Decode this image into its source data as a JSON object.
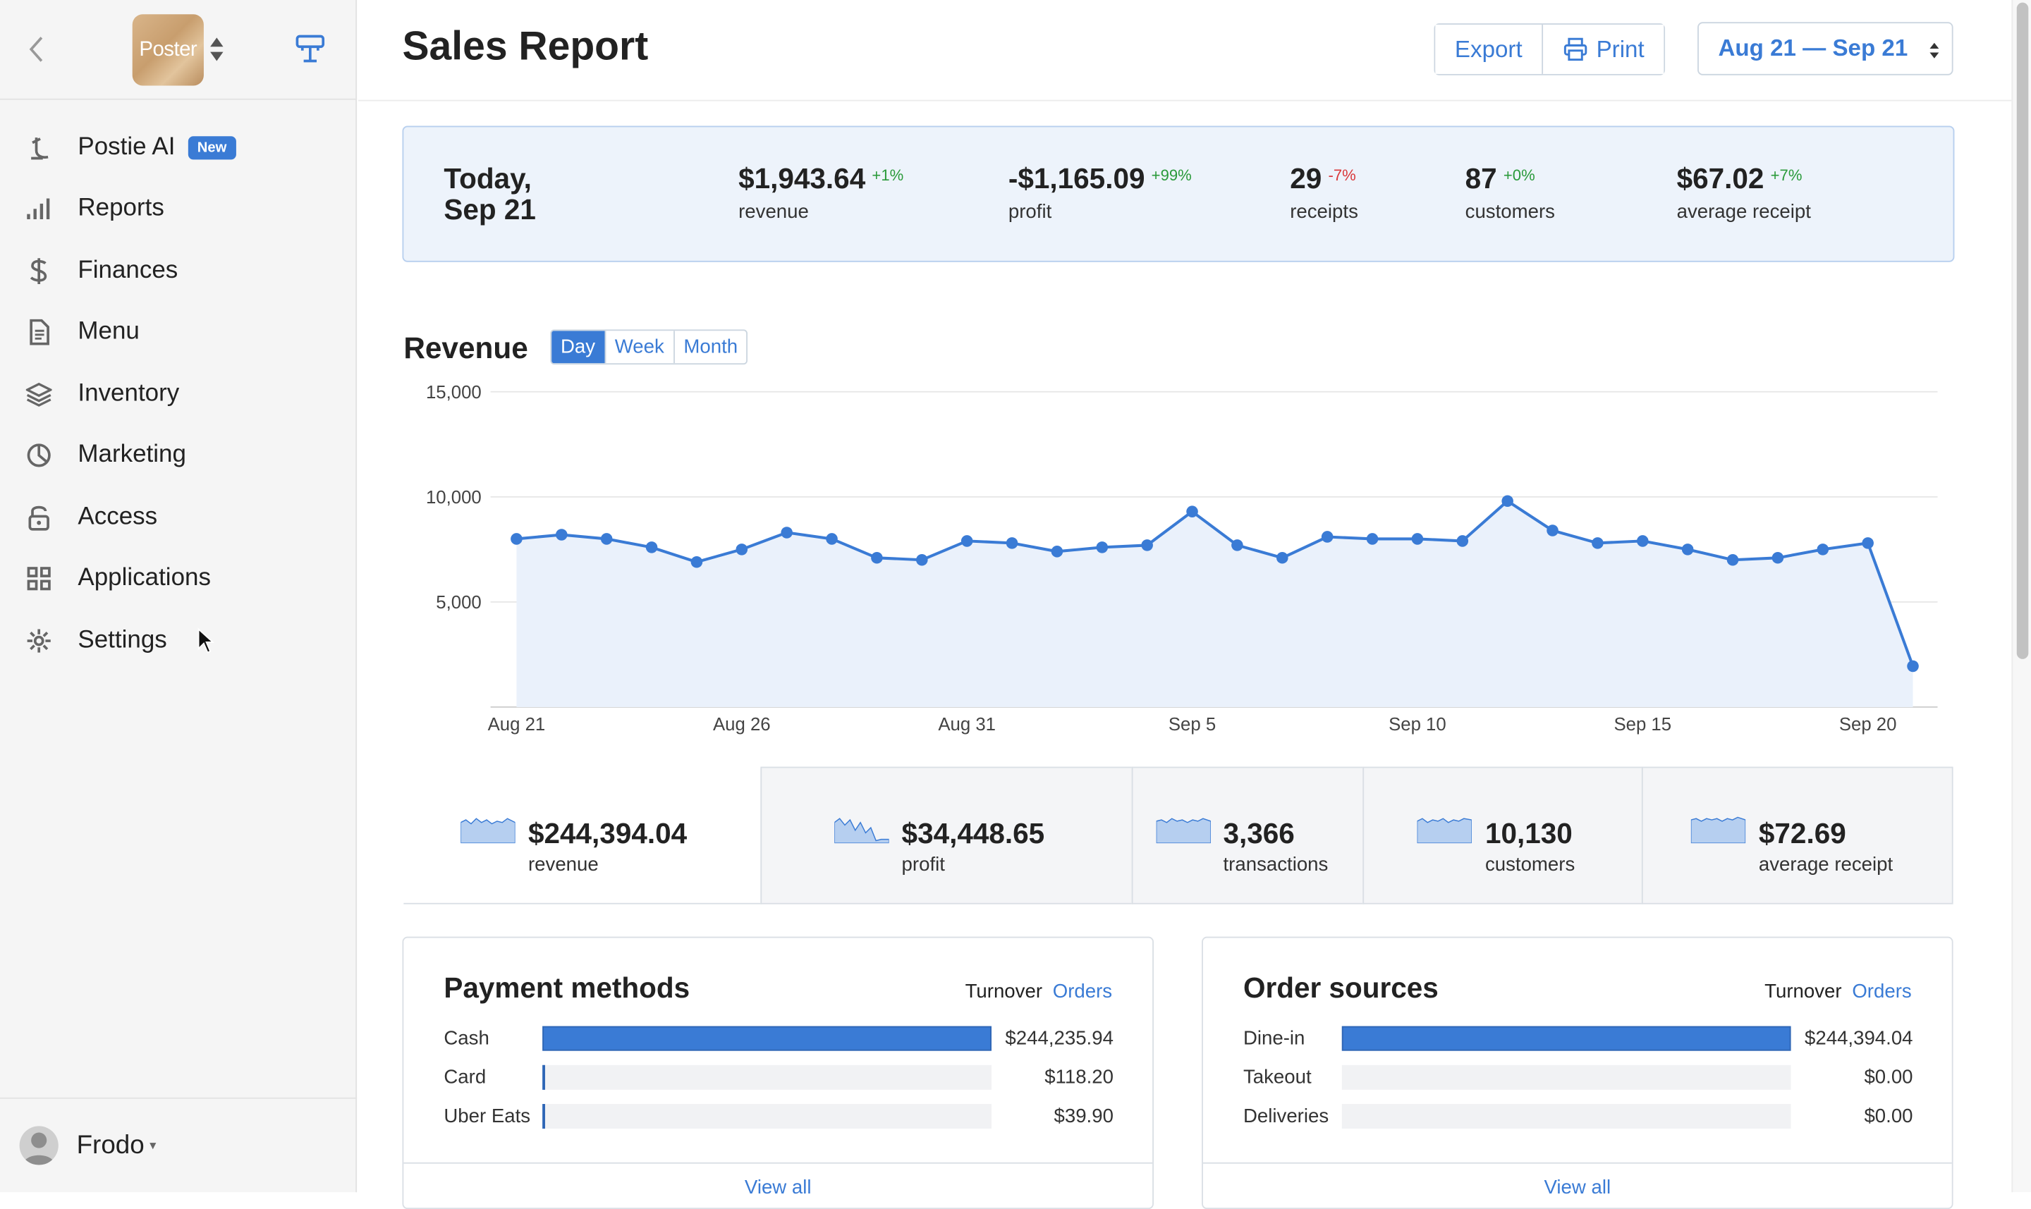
{
  "app": {
    "logo_text": "Poster",
    "page_title": "Sales Report"
  },
  "sidebar": {
    "items": [
      {
        "label": "Postie AI",
        "icon": "postie-icon",
        "badge": "New"
      },
      {
        "label": "Reports",
        "icon": "bar-chart-icon"
      },
      {
        "label": "Finances",
        "icon": "dollar-icon"
      },
      {
        "label": "Menu",
        "icon": "document-icon"
      },
      {
        "label": "Inventory",
        "icon": "layers-icon"
      },
      {
        "label": "Marketing",
        "icon": "pie-icon"
      },
      {
        "label": "Access",
        "icon": "lock-icon"
      },
      {
        "label": "Applications",
        "icon": "grid-icon"
      },
      {
        "label": "Settings",
        "icon": "gear-icon"
      }
    ],
    "user": "Frodo"
  },
  "header": {
    "export_label": "Export",
    "print_label": "Print",
    "date_range": "Aug 21 — Sep 21"
  },
  "today": {
    "date_line1": "Today,",
    "date_line2": "Sep 21",
    "stats": [
      {
        "value": "$1,943.64",
        "change": "+1%",
        "label": "revenue",
        "trend": "up"
      },
      {
        "value": "-$1,165.09",
        "change": "+99%",
        "label": "profit",
        "trend": "up"
      },
      {
        "value": "29",
        "change": "-7%",
        "label": "receipts",
        "trend": "down"
      },
      {
        "value": "87",
        "change": "+0%",
        "label": "customers",
        "trend": "up"
      },
      {
        "value": "$67.02",
        "change": "+7%",
        "label": "average receipt",
        "trend": "up"
      }
    ]
  },
  "revenue": {
    "title": "Revenue",
    "periods": [
      "Day",
      "Week",
      "Month"
    ],
    "active_period": "Day"
  },
  "chart_data": {
    "type": "area",
    "title": "Revenue",
    "x": [
      "Aug 21",
      "Aug 22",
      "Aug 23",
      "Aug 24",
      "Aug 25",
      "Aug 26",
      "Aug 27",
      "Aug 28",
      "Aug 29",
      "Aug 30",
      "Aug 31",
      "Sep 1",
      "Sep 2",
      "Sep 3",
      "Sep 4",
      "Sep 5",
      "Sep 6",
      "Sep 7",
      "Sep 8",
      "Sep 9",
      "Sep 10",
      "Sep 11",
      "Sep 12",
      "Sep 13",
      "Sep 14",
      "Sep 15",
      "Sep 16",
      "Sep 17",
      "Sep 18",
      "Sep 19",
      "Sep 20",
      "Sep 21"
    ],
    "values": [
      8000,
      8200,
      8000,
      7600,
      6900,
      7500,
      8300,
      8000,
      7100,
      7000,
      7900,
      7800,
      7400,
      7600,
      7700,
      9300,
      7700,
      7100,
      8100,
      8000,
      8000,
      7900,
      9800,
      8400,
      7800,
      7900,
      7500,
      7000,
      7100,
      7500,
      7800,
      1943.64
    ],
    "x_tick_labels": [
      "Aug 21",
      "Aug 26",
      "Aug 31",
      "Sep 5",
      "Sep 10",
      "Sep 15",
      "Sep 20"
    ],
    "y_ticks": [
      5000,
      10000,
      15000
    ],
    "y_tick_labels": [
      "5,000",
      "10,000",
      "15,000"
    ],
    "ylim": [
      0,
      15000
    ],
    "grid": true,
    "colors": {
      "line": "#3a7bd5",
      "fill": "#eaf1fb"
    }
  },
  "totals": [
    {
      "value": "$244,394.04",
      "label": "revenue",
      "selected": true
    },
    {
      "value": "$34,448.65",
      "label": "profit"
    },
    {
      "value": "3,366",
      "label": "transactions"
    },
    {
      "value": "10,130",
      "label": "customers"
    },
    {
      "value": "$72.69",
      "label": "average receipt"
    }
  ],
  "payment_methods": {
    "title": "Payment methods",
    "toggle_turnover": "Turnover",
    "toggle_orders": "Orders",
    "rows": [
      {
        "label": "Cash",
        "value": "$244,235.94",
        "share": 0.9994
      },
      {
        "label": "Card",
        "value": "$118.20",
        "share": 0.0005
      },
      {
        "label": "Uber Eats",
        "value": "$39.90",
        "share": 0.0002
      }
    ],
    "view_all": "View all"
  },
  "order_sources": {
    "title": "Order sources",
    "toggle_turnover": "Turnover",
    "toggle_orders": "Orders",
    "rows": [
      {
        "label": "Dine-in",
        "value": "$244,394.04",
        "share": 1.0
      },
      {
        "label": "Takeout",
        "value": "$0.00",
        "share": 0
      },
      {
        "label": "Deliveries",
        "value": "$0.00",
        "share": 0
      }
    ],
    "view_all": "View all"
  },
  "colors": {
    "accent": "#3a7bd5",
    "positive": "#2a9a3a",
    "negative": "#d9383a",
    "summary_bg": "#edf3fb"
  }
}
